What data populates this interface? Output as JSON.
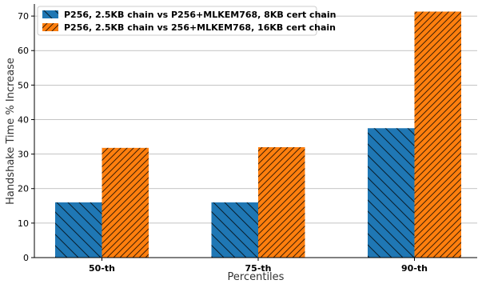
{
  "chart_data": {
    "type": "bar",
    "title": "",
    "xlabel": "Percentiles",
    "ylabel": "Handshake Time % Increase",
    "categories": [
      "50-th",
      "75-th",
      "90-th"
    ],
    "series": [
      {
        "name": "P256, 2.5KB chain vs P256+MLKEM768, 8KB cert chain",
        "values": [
          16,
          16,
          37.5
        ],
        "color": "#1f77b4",
        "hatch": "backslash"
      },
      {
        "name": "P256, 2.5KB chain vs 256+MLKEM768, 16KB cert chain",
        "values": [
          31.8,
          32,
          71.3
        ],
        "color": "#ff7f0e",
        "hatch": "slash"
      }
    ],
    "ylim": [
      0,
      73.5
    ],
    "yticks": [
      0,
      10,
      20,
      30,
      40,
      50,
      60,
      70
    ],
    "grid": "horizontal",
    "legend_position": "top-left"
  }
}
